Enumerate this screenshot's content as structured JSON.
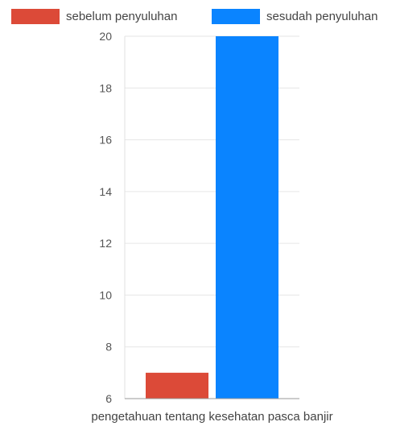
{
  "chart_data": {
    "type": "bar",
    "categories": [
      "pengetahuan tentang kesehatan pasca banjir"
    ],
    "series": [
      {
        "name": "sebelum penyuluhan",
        "values": [
          7
        ],
        "color": "#dc4a38"
      },
      {
        "name": "sesudah penyuluhan",
        "values": [
          20
        ],
        "color": "#0a84ff"
      }
    ],
    "title": "",
    "xlabel": "",
    "ylabel": "",
    "ylim": [
      6,
      20
    ],
    "yticks": [
      6,
      8,
      10,
      12,
      14,
      16,
      18,
      20
    ],
    "grid": true,
    "legend_position": "top"
  }
}
